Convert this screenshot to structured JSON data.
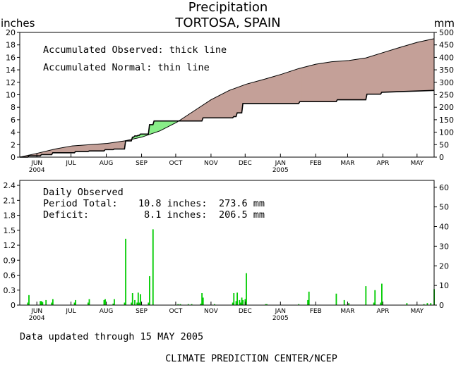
{
  "header": {
    "title": "Precipitation",
    "subtitle": "TORTOSA, SPAIN",
    "left_unit": "inches",
    "right_unit": "mm"
  },
  "colors": {
    "deficit": "#c4a098",
    "surplus": "#88ee88",
    "bar": "#00cc00",
    "line": "#000000"
  },
  "months": [
    "JUN",
    "JUL",
    "AUG",
    "SEP",
    "OCT",
    "NOV",
    "DEC",
    "JAN",
    "FEB",
    "MAR",
    "APR",
    "MAY"
  ],
  "month_years": {
    "JUN": "2004",
    "JAN": "2005"
  },
  "chart_data": [
    {
      "type": "area",
      "name": "accumulated",
      "y_left_ticks": [
        "0",
        "2",
        "4",
        "6",
        "8",
        "10",
        "12",
        "14",
        "16",
        "18",
        "20"
      ],
      "y_right_ticks": [
        "0",
        "50",
        "100",
        "150",
        "200",
        "250",
        "300",
        "350",
        "400",
        "450",
        "500"
      ],
      "ylim_inches": [
        0,
        20
      ],
      "ylim_mm": [
        0,
        500
      ],
      "legend_observed": "Accumulated Observed: thick line",
      "legend_normal": "Accumulated Normal: thin line",
      "x_unit": "days since 2004-05-16",
      "normal": {
        "x": [
          0,
          15,
          31,
          46,
          62,
          77,
          92,
          107,
          123,
          138,
          153,
          168,
          184,
          199,
          215,
          230,
          245,
          260,
          274,
          289,
          304,
          318,
          334,
          349,
          364
        ],
        "y": [
          0,
          0.6,
          1.3,
          1.8,
          2.0,
          2.2,
          2.6,
          3.2,
          4.2,
          5.6,
          7.4,
          9.2,
          10.7,
          11.7,
          12.5,
          13.3,
          14.2,
          14.9,
          15.3,
          15.5,
          15.9,
          16.7,
          17.6,
          18.4,
          19.0
        ]
      },
      "observed": {
        "x": [
          0,
          7,
          8,
          18,
          19,
          28,
          29,
          48,
          49,
          60,
          61,
          74,
          75,
          82,
          83,
          92,
          93,
          98,
          99,
          100,
          101,
          103,
          104,
          105,
          106,
          113,
          114,
          117,
          118,
          124,
          125,
          160,
          161,
          187,
          188,
          190,
          191,
          195,
          196,
          216,
          217,
          245,
          246,
          253,
          254,
          278,
          279,
          304,
          305,
          317,
          318,
          364
        ],
        "y": [
          0,
          0,
          0.2,
          0.2,
          0.4,
          0.4,
          0.7,
          0.7,
          0.9,
          0.9,
          1.0,
          1.0,
          1.2,
          1.2,
          1.3,
          1.3,
          2.6,
          2.6,
          3.2,
          3.2,
          3.4,
          3.4,
          3.5,
          3.5,
          3.7,
          3.7,
          5.2,
          5.2,
          5.8,
          5.8,
          5.8,
          5.8,
          6.3,
          6.3,
          6.5,
          6.5,
          7.1,
          7.1,
          8.6,
          8.6,
          8.6,
          8.6,
          8.9,
          8.9,
          8.9,
          8.9,
          9.2,
          9.2,
          10.1,
          10.1,
          10.4,
          10.7
        ]
      }
    },
    {
      "type": "bar",
      "name": "daily",
      "y_left_ticks": [
        "0",
        "0.3",
        "0.6",
        "0.9",
        "1.2",
        "1.5",
        "1.8",
        "2.1",
        "2.4"
      ],
      "y_right_ticks": [
        "0",
        "10",
        "20",
        "30",
        "40",
        "50",
        "60"
      ],
      "ylim_inches": [
        0,
        2.5
      ],
      "label": "Daily Observed",
      "period_total_label": "Period Total:",
      "period_total_inches": "10.8 inches:",
      "period_total_mm": "273.6 mm",
      "deficit_label": "Deficit:",
      "deficit_inches": "8.1 inches:",
      "deficit_mm": "206.5 mm",
      "x_unit": "days since 2004-05-16",
      "x": [
        7,
        8,
        18,
        19,
        20,
        23,
        28,
        29,
        48,
        49,
        60,
        61,
        74,
        75,
        82,
        83,
        92,
        93,
        98,
        99,
        101,
        103,
        104,
        105,
        106,
        113,
        114,
        117,
        139,
        141,
        148,
        151,
        159,
        160,
        161,
        171,
        187,
        188,
        190,
        191,
        193,
        194,
        195,
        196,
        198,
        199,
        216,
        217,
        245,
        253,
        254,
        278,
        285,
        289,
        304,
        311,
        312,
        317,
        318,
        340,
        355,
        358,
        361,
        364
      ],
      "values": [
        0.05,
        0.2,
        0.08,
        0.08,
        0.06,
        0.1,
        0.05,
        0.12,
        0.05,
        0.1,
        0.05,
        0.12,
        0.1,
        0.12,
        0.03,
        0.12,
        0.05,
        1.33,
        0.05,
        0.24,
        0.1,
        0.05,
        0.25,
        0.05,
        0.22,
        0.05,
        0.58,
        1.52,
        0.02,
        0.02,
        0.02,
        0.02,
        0.03,
        0.24,
        0.15,
        0.02,
        0.05,
        0.24,
        0.08,
        0.25,
        0.1,
        0.05,
        0.15,
        0.1,
        0.12,
        0.64,
        0.02,
        0.02,
        0.02,
        0.1,
        0.27,
        0.23,
        0.1,
        0.04,
        0.38,
        0.05,
        0.3,
        0.05,
        0.43,
        0.04,
        0.02,
        0.04,
        0.04,
        0.32
      ]
    }
  ],
  "footer": {
    "updated": "Data updated through 15 MAY 2005",
    "credit": "CLIMATE PREDICTION CENTER/NCEP"
  }
}
